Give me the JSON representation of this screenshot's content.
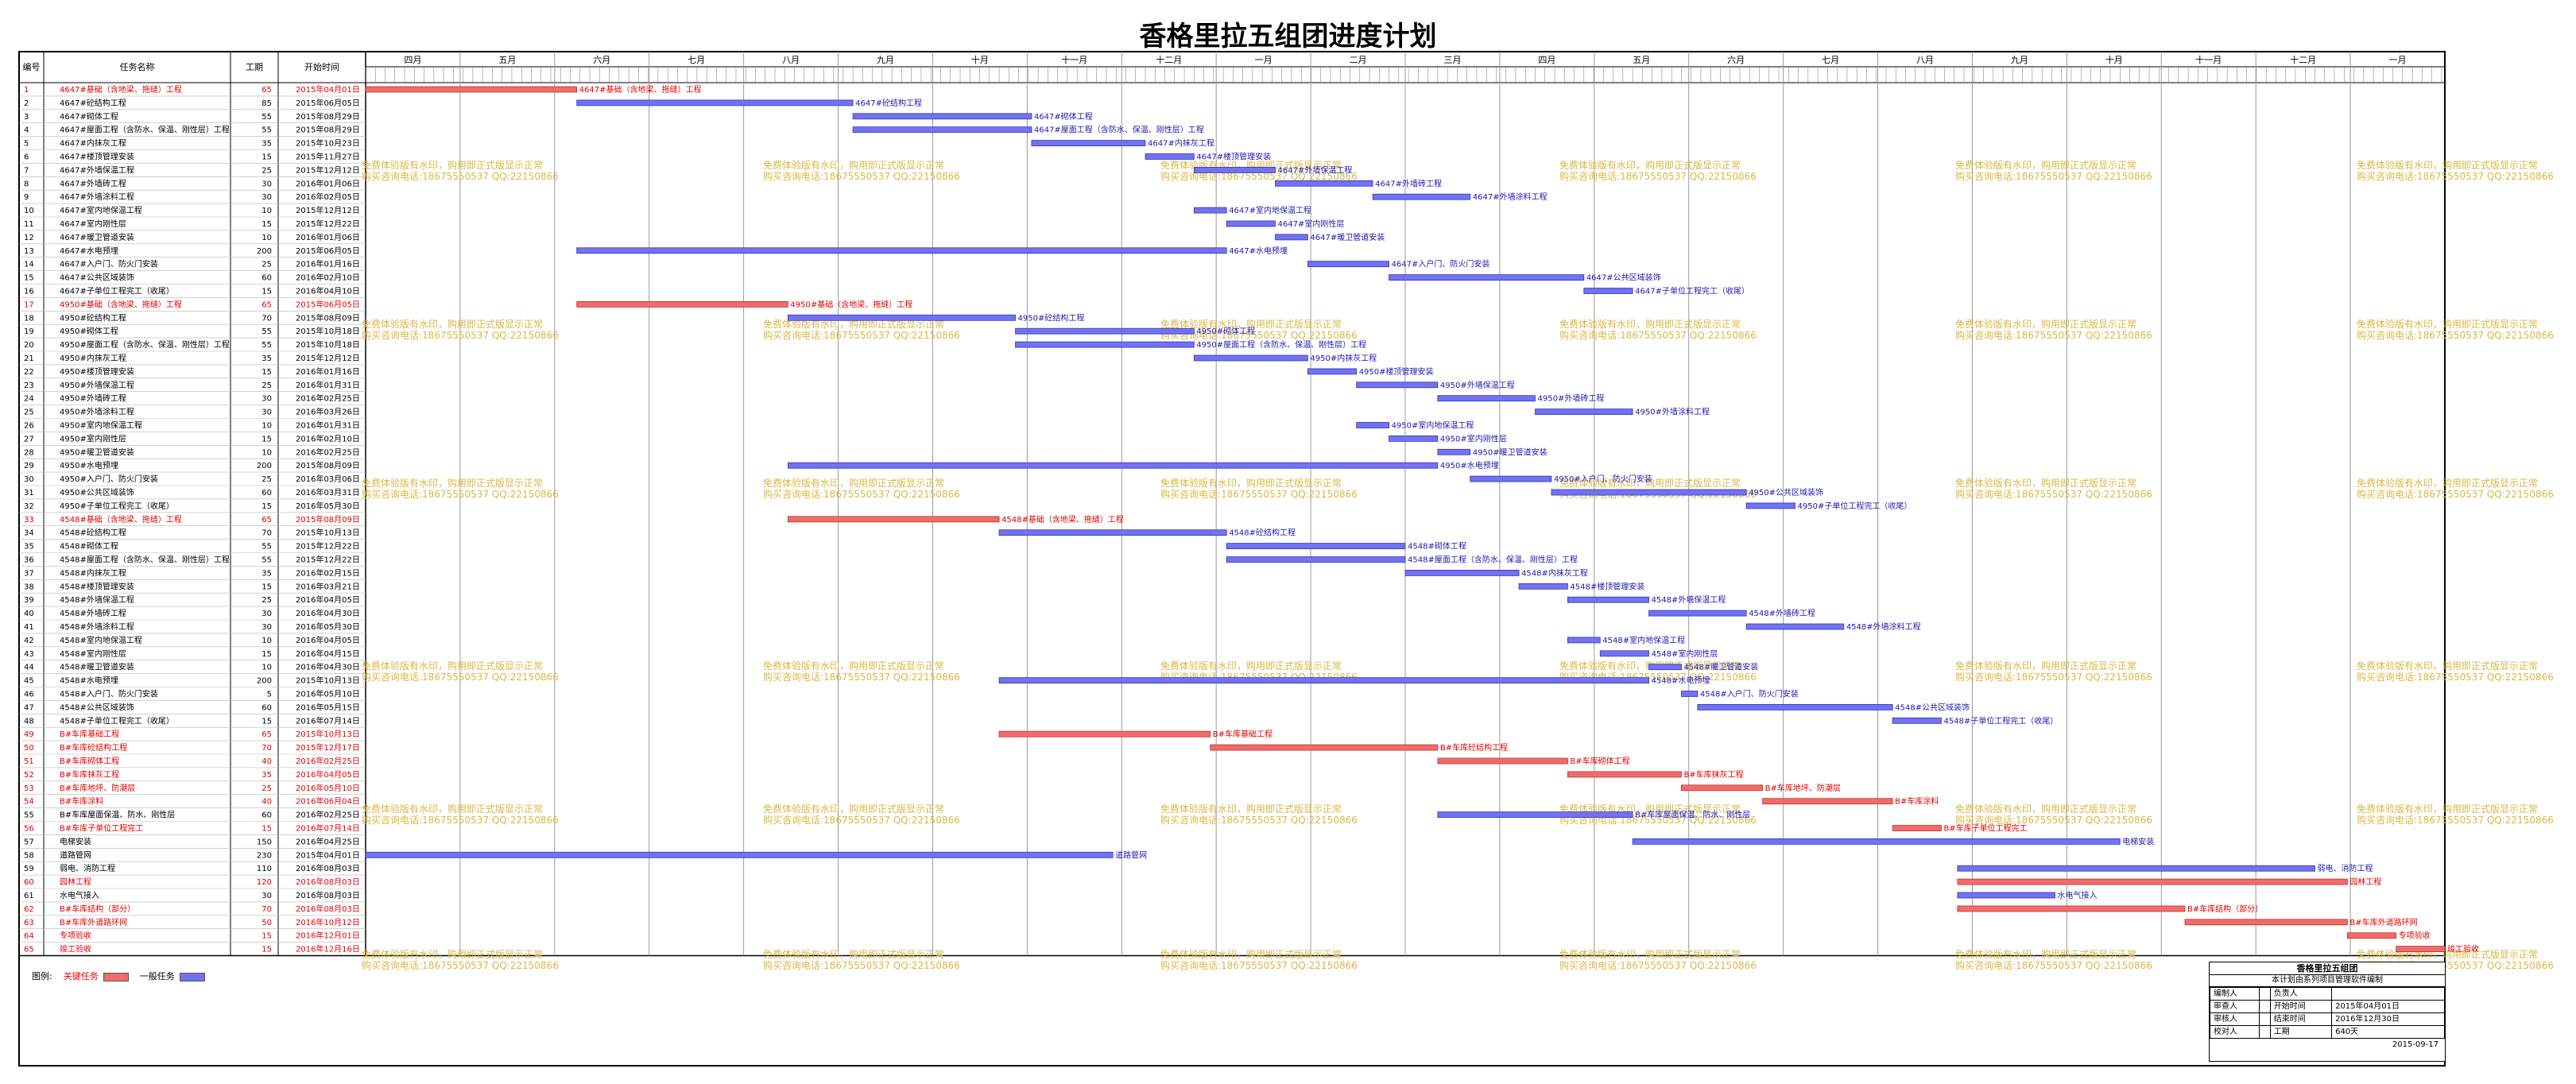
{
  "title": "香格里拉五组团进度计划",
  "columns": {
    "num": "编号",
    "name": "任务名称",
    "dur": "工期",
    "start": "开始时间"
  },
  "months": [
    "四月",
    "五月",
    "六月",
    "七月",
    "八月",
    "九月",
    "十月",
    "十一月",
    "十二月",
    "一月",
    "二月",
    "三月",
    "四月",
    "五月",
    "六月",
    "七月",
    "八月",
    "九月",
    "十月",
    "十一月",
    "十二月",
    "一月"
  ],
  "watermark": [
    "免费体验版有水印，购用即正式版显示正常",
    "购买咨询电话:18675550537 QQ:22150866"
  ],
  "tasks": [
    {
      "name": "4647#基础（含地梁、拖缝）工程",
      "dur": "65",
      "start": "2015年04月01日",
      "crit": true,
      "row": 0,
      "s": 0,
      "d": 65,
      "label": "4647#基础（含地梁、拖缝）工程"
    },
    {
      "name": "4647#砼结构工程",
      "dur": "85",
      "start": "2015年06月05日",
      "crit": false,
      "row": 1,
      "s": 65,
      "d": 85,
      "label": "4647#砼结构工程"
    },
    {
      "name": "4647#砌体工程",
      "dur": "55",
      "start": "2015年08月29日",
      "crit": false,
      "row": 2,
      "s": 150,
      "d": 55,
      "label": "4647#砌体工程"
    },
    {
      "name": "4647#屋面工程（含防水、保温、刚性层）工程",
      "dur": "55",
      "start": "2015年08月29日",
      "crit": false,
      "row": 3,
      "s": 150,
      "d": 55,
      "label": "4647#屋面工程（含防水、保温、刚性层）工程"
    },
    {
      "name": "4647#内抹灰工程",
      "dur": "35",
      "start": "2015年10月23日",
      "crit": false,
      "row": 4,
      "s": 205,
      "d": 35,
      "label": "4647#内抹灰工程"
    },
    {
      "name": "4647#楼顶管理安装",
      "dur": "15",
      "start": "2015年11月27日",
      "crit": false,
      "row": 5,
      "s": 240,
      "d": 15,
      "label": "4647#楼顶管理安装"
    },
    {
      "name": "4647#外墙保温工程",
      "dur": "25",
      "start": "2015年12月12日",
      "crit": false,
      "row": 6,
      "s": 255,
      "d": 25,
      "label": "4647#外墙保温工程"
    },
    {
      "name": "4647#外墙砖工程",
      "dur": "30",
      "start": "2016年01月06日",
      "crit": false,
      "row": 7,
      "s": 280,
      "d": 30,
      "label": "4647#外墙砖工程"
    },
    {
      "name": "4647#外墙涂料工程",
      "dur": "30",
      "start": "2016年02月05日",
      "crit": false,
      "row": 8,
      "s": 310,
      "d": 30,
      "label": "4647#外墙涂料工程"
    },
    {
      "name": "4647#室内地保温工程",
      "dur": "10",
      "start": "2015年12月12日",
      "crit": false,
      "row": 9,
      "s": 255,
      "d": 10,
      "label": "4647#室内地保温工程"
    },
    {
      "name": "4647#室内刚性层",
      "dur": "15",
      "start": "2015年12月22日",
      "crit": false,
      "row": 10,
      "s": 265,
      "d": 15,
      "label": "4647#室内刚性层"
    },
    {
      "name": "4647#暖卫管道安装",
      "dur": "10",
      "start": "2016年01月06日",
      "crit": false,
      "row": 11,
      "s": 280,
      "d": 10,
      "label": "4647#暖卫管道安装"
    },
    {
      "name": "4647#水电预埋",
      "dur": "200",
      "start": "2015年06月05日",
      "crit": false,
      "row": 12,
      "s": 65,
      "d": 200,
      "label": "4647#水电预埋"
    },
    {
      "name": "4647#入户门、防火门安装",
      "dur": "25",
      "start": "2016年01月16日",
      "crit": false,
      "row": 13,
      "s": 290,
      "d": 25,
      "label": "4647#入户门、防火门安装"
    },
    {
      "name": "4647#公共区域装饰",
      "dur": "60",
      "start": "2016年02月10日",
      "crit": false,
      "row": 14,
      "s": 315,
      "d": 60,
      "label": "4647#公共区域装饰"
    },
    {
      "name": "4647#子单位工程完工（收尾）",
      "dur": "15",
      "start": "2016年04月10日",
      "crit": false,
      "row": 15,
      "s": 375,
      "d": 15,
      "label": "4647#子单位工程完工（收尾）"
    },
    {
      "name": "4950#基础（含地梁、拖缝）工程",
      "dur": "65",
      "start": "2015年06月05日",
      "crit": true,
      "row": 16,
      "s": 65,
      "d": 65,
      "label": "4950#基础（含地梁、拖缝）工程"
    },
    {
      "name": "4950#砼结构工程",
      "dur": "70",
      "start": "2015年08月09日",
      "crit": false,
      "row": 17,
      "s": 130,
      "d": 70,
      "label": "4950#砼结构工程"
    },
    {
      "name": "4950#砌体工程",
      "dur": "55",
      "start": "2015年10月18日",
      "crit": false,
      "row": 18,
      "s": 200,
      "d": 55,
      "label": "4950#砌体工程"
    },
    {
      "name": "4950#屋面工程（含防水、保温、刚性层）工程",
      "dur": "55",
      "start": "2015年10月18日",
      "crit": false,
      "row": 19,
      "s": 200,
      "d": 55,
      "label": "4950#屋面工程（含防水、保温、刚性层）工程"
    },
    {
      "name": "4950#内抹灰工程",
      "dur": "35",
      "start": "2015年12月12日",
      "crit": false,
      "row": 20,
      "s": 255,
      "d": 35,
      "label": "4950#内抹灰工程"
    },
    {
      "name": "4950#楼顶管理安装",
      "dur": "15",
      "start": "2016年01月16日",
      "crit": false,
      "row": 21,
      "s": 290,
      "d": 15,
      "label": "4950#楼顶管理安装"
    },
    {
      "name": "4950#外墙保温工程",
      "dur": "25",
      "start": "2016年01月31日",
      "crit": false,
      "row": 22,
      "s": 305,
      "d": 25,
      "label": "4950#外墙保温工程"
    },
    {
      "name": "4950#外墙砖工程",
      "dur": "30",
      "start": "2016年02月25日",
      "crit": false,
      "row": 23,
      "s": 330,
      "d": 30,
      "label": "4950#外墙砖工程"
    },
    {
      "name": "4950#外墙涂料工程",
      "dur": "30",
      "start": "2016年03月26日",
      "crit": false,
      "row": 24,
      "s": 360,
      "d": 30,
      "label": "4950#外墙涂料工程"
    },
    {
      "name": "4950#室内地保温工程",
      "dur": "10",
      "start": "2016年01月31日",
      "crit": false,
      "row": 25,
      "s": 305,
      "d": 10,
      "label": "4950#室内地保温工程"
    },
    {
      "name": "4950#室内刚性层",
      "dur": "15",
      "start": "2016年02月10日",
      "crit": false,
      "row": 26,
      "s": 315,
      "d": 15,
      "label": "4950#室内刚性层"
    },
    {
      "name": "4950#暖卫管道安装",
      "dur": "10",
      "start": "2016年02月25日",
      "crit": false,
      "row": 27,
      "s": 330,
      "d": 10,
      "label": "4950#暖卫管道安装"
    },
    {
      "name": "4950#水电预埋",
      "dur": "200",
      "start": "2015年08月09日",
      "crit": false,
      "row": 28,
      "s": 130,
      "d": 200,
      "label": "4950#水电预埋"
    },
    {
      "name": "4950#入户门、防火门安装",
      "dur": "25",
      "start": "2016年03月06日",
      "crit": false,
      "row": 29,
      "s": 340,
      "d": 25,
      "label": "4950#入户门、防火门安装"
    },
    {
      "name": "4950#公共区域装饰",
      "dur": "60",
      "start": "2016年03月31日",
      "crit": false,
      "row": 30,
      "s": 365,
      "d": 60,
      "label": "4950#公共区域装饰"
    },
    {
      "name": "4950#子单位工程完工（收尾）",
      "dur": "15",
      "start": "2016年05月30日",
      "crit": false,
      "row": 31,
      "s": 425,
      "d": 15,
      "label": "4950#子单位工程完工（收尾）"
    },
    {
      "name": "4548#基础（含地梁、拖缝）工程",
      "dur": "65",
      "start": "2015年08月09日",
      "crit": true,
      "row": 32,
      "s": 130,
      "d": 65,
      "label": "4548#基础（含地梁、拖缝）工程"
    },
    {
      "name": "4548#砼结构工程",
      "dur": "70",
      "start": "2015年10月13日",
      "crit": false,
      "row": 33,
      "s": 195,
      "d": 70,
      "label": "4548#砼结构工程"
    },
    {
      "name": "4548#砌体工程",
      "dur": "55",
      "start": "2015年12月22日",
      "crit": false,
      "row": 34,
      "s": 265,
      "d": 55,
      "label": "4548#砌体工程"
    },
    {
      "name": "4548#屋面工程（含防水、保温、刚性层）工程",
      "dur": "55",
      "start": "2015年12月22日",
      "crit": false,
      "row": 35,
      "s": 265,
      "d": 55,
      "label": "4548#屋面工程（含防水、保温、刚性层）工程"
    },
    {
      "name": "4548#内抹灰工程",
      "dur": "35",
      "start": "2016年02月15日",
      "crit": false,
      "row": 36,
      "s": 320,
      "d": 35,
      "label": "4548#内抹灰工程"
    },
    {
      "name": "4548#楼顶管理安装",
      "dur": "15",
      "start": "2016年03月21日",
      "crit": false,
      "row": 37,
      "s": 355,
      "d": 15,
      "label": "4548#楼顶管理安装"
    },
    {
      "name": "4548#外墙保温工程",
      "dur": "25",
      "start": "2016年04月05日",
      "crit": false,
      "row": 38,
      "s": 370,
      "d": 25,
      "label": "4548#外墙保温工程"
    },
    {
      "name": "4548#外墙砖工程",
      "dur": "30",
      "start": "2016年04月30日",
      "crit": false,
      "row": 39,
      "s": 395,
      "d": 30,
      "label": "4548#外墙砖工程"
    },
    {
      "name": "4548#外墙涂料工程",
      "dur": "30",
      "start": "2016年05月30日",
      "crit": false,
      "row": 40,
      "s": 425,
      "d": 30,
      "label": "4548#外墙涂料工程"
    },
    {
      "name": "4548#室内地保温工程",
      "dur": "10",
      "start": "2016年04月05日",
      "crit": false,
      "row": 41,
      "s": 370,
      "d": 10,
      "label": "4548#室内地保温工程"
    },
    {
      "name": "4548#室内刚性层",
      "dur": "15",
      "start": "2016年04月15日",
      "crit": false,
      "row": 42,
      "s": 380,
      "d": 15,
      "label": "4548#室内刚性层"
    },
    {
      "name": "4548#暖卫管道安装",
      "dur": "10",
      "start": "2016年04月30日",
      "crit": false,
      "row": 43,
      "s": 395,
      "d": 10,
      "label": "4548#暖卫管道安装"
    },
    {
      "name": "4548#水电预埋",
      "dur": "200",
      "start": "2015年10月13日",
      "crit": false,
      "row": 44,
      "s": 195,
      "d": 200,
      "label": "4548#水电预埋"
    },
    {
      "name": "4548#入户门、防火门安装",
      "dur": "5",
      "start": "2016年05月10日",
      "crit": false,
      "row": 45,
      "s": 405,
      "d": 5,
      "label": "4548#入户门、防火门安装"
    },
    {
      "name": "4548#公共区域装饰",
      "dur": "60",
      "start": "2016年05月15日",
      "crit": false,
      "row": 46,
      "s": 410,
      "d": 60,
      "label": "4548#公共区域装饰"
    },
    {
      "name": "4548#子单位工程完工（收尾）",
      "dur": "15",
      "start": "2016年07月14日",
      "crit": false,
      "row": 47,
      "s": 470,
      "d": 15,
      "label": "4548#子单位工程完工（收尾）"
    },
    {
      "name": "B#车库基础工程",
      "dur": "65",
      "start": "2015年10月13日",
      "crit": true,
      "row": 48,
      "s": 195,
      "d": 65,
      "label": "B#车库基础工程"
    },
    {
      "name": "B#车库砼结构工程",
      "dur": "70",
      "start": "2015年12月17日",
      "crit": true,
      "row": 49,
      "s": 260,
      "d": 70,
      "label": "B#车库砼结构工程"
    },
    {
      "name": "B#车库砌体工程",
      "dur": "40",
      "start": "2016年02月25日",
      "crit": true,
      "row": 50,
      "s": 330,
      "d": 40,
      "label": "B#车库砌体工程"
    },
    {
      "name": "B#车库抹灰工程",
      "dur": "35",
      "start": "2016年04月05日",
      "crit": true,
      "row": 51,
      "s": 370,
      "d": 35,
      "label": "B#车库抹灰工程"
    },
    {
      "name": "B#车库地坪、防潮层",
      "dur": "25",
      "start": "2016年05月10日",
      "crit": true,
      "row": 52,
      "s": 405,
      "d": 25,
      "label": "B#车库地坪、防潮层"
    },
    {
      "name": "B#车库涂料",
      "dur": "40",
      "start": "2016年06月04日",
      "crit": true,
      "row": 53,
      "s": 430,
      "d": 40,
      "label": "B#车库涂料"
    },
    {
      "name": "B#车库屋面保温、防水、刚性层",
      "dur": "60",
      "start": "2016年02月25日",
      "crit": false,
      "row": 54,
      "s": 330,
      "d": 60,
      "label": "B#车库屋面保温、防水、刚性层"
    },
    {
      "name": "B#车库子单位工程完工",
      "dur": "15",
      "start": "2016年07月14日",
      "crit": true,
      "row": 55,
      "s": 470,
      "d": 15,
      "label": "B#车库子单位工程完工"
    },
    {
      "name": "电梯安装",
      "dur": "150",
      "start": "2016年04月25日",
      "crit": false,
      "row": 56,
      "s": 390,
      "d": 150,
      "label": "电梯安装"
    },
    {
      "name": "道路管网",
      "dur": "230",
      "start": "2015年04月01日",
      "crit": false,
      "row": 57,
      "s": 0,
      "d": 230,
      "label": "道路管网"
    },
    {
      "name": "弱电、消防工程",
      "dur": "110",
      "start": "2016年08月03日",
      "crit": false,
      "row": 58,
      "s": 490,
      "d": 110,
      "label": "弱电、消防工程"
    },
    {
      "name": "园林工程",
      "dur": "120",
      "start": "2016年08月03日",
      "crit": true,
      "row": 59,
      "s": 490,
      "d": 120,
      "label": "园林工程"
    },
    {
      "name": "水电气接入",
      "dur": "30",
      "start": "2016年08月03日",
      "crit": false,
      "row": 60,
      "s": 490,
      "d": 30,
      "label": "水电气接入"
    },
    {
      "name": "B#车库结构（部分）",
      "dur": "70",
      "start": "2016年08月03日",
      "crit": true,
      "row": 61,
      "s": 490,
      "d": 70,
      "label": "B#车库结构（部分）"
    },
    {
      "name": "B#车库外道路环网",
      "dur": "50",
      "start": "2016年10月12日",
      "crit": true,
      "row": 62,
      "s": 560,
      "d": 50,
      "label": "B#车库外道路环网"
    },
    {
      "name": "专项验收",
      "dur": "15",
      "start": "2016年12月01日",
      "crit": true,
      "row": 63,
      "s": 610,
      "d": 15,
      "label": "专项验收"
    },
    {
      "name": "竣工验收",
      "dur": "15",
      "start": "2016年12月16日",
      "crit": true,
      "row": 64,
      "s": 625,
      "d": 15,
      "label": "竣工验收"
    }
  ],
  "legend": {
    "label": "图例:",
    "critical": "关键任务",
    "normal": "一般任务",
    "critical_color": "#f26b6b",
    "normal_color": "#7272f2"
  },
  "info": {
    "title": "香格里拉五组团",
    "subtitle": "本计划由系列项目管理软件编制",
    "rows": [
      [
        "编制人",
        "",
        "负责人",
        ""
      ],
      [
        "审查人",
        "",
        "开始时间",
        "2015年04月01日"
      ],
      [
        "审核人",
        "",
        "结束时间",
        "2016年12月30日"
      ],
      [
        "校对人",
        "",
        "工期",
        "640天"
      ]
    ],
    "date": "2015-09-17"
  }
}
